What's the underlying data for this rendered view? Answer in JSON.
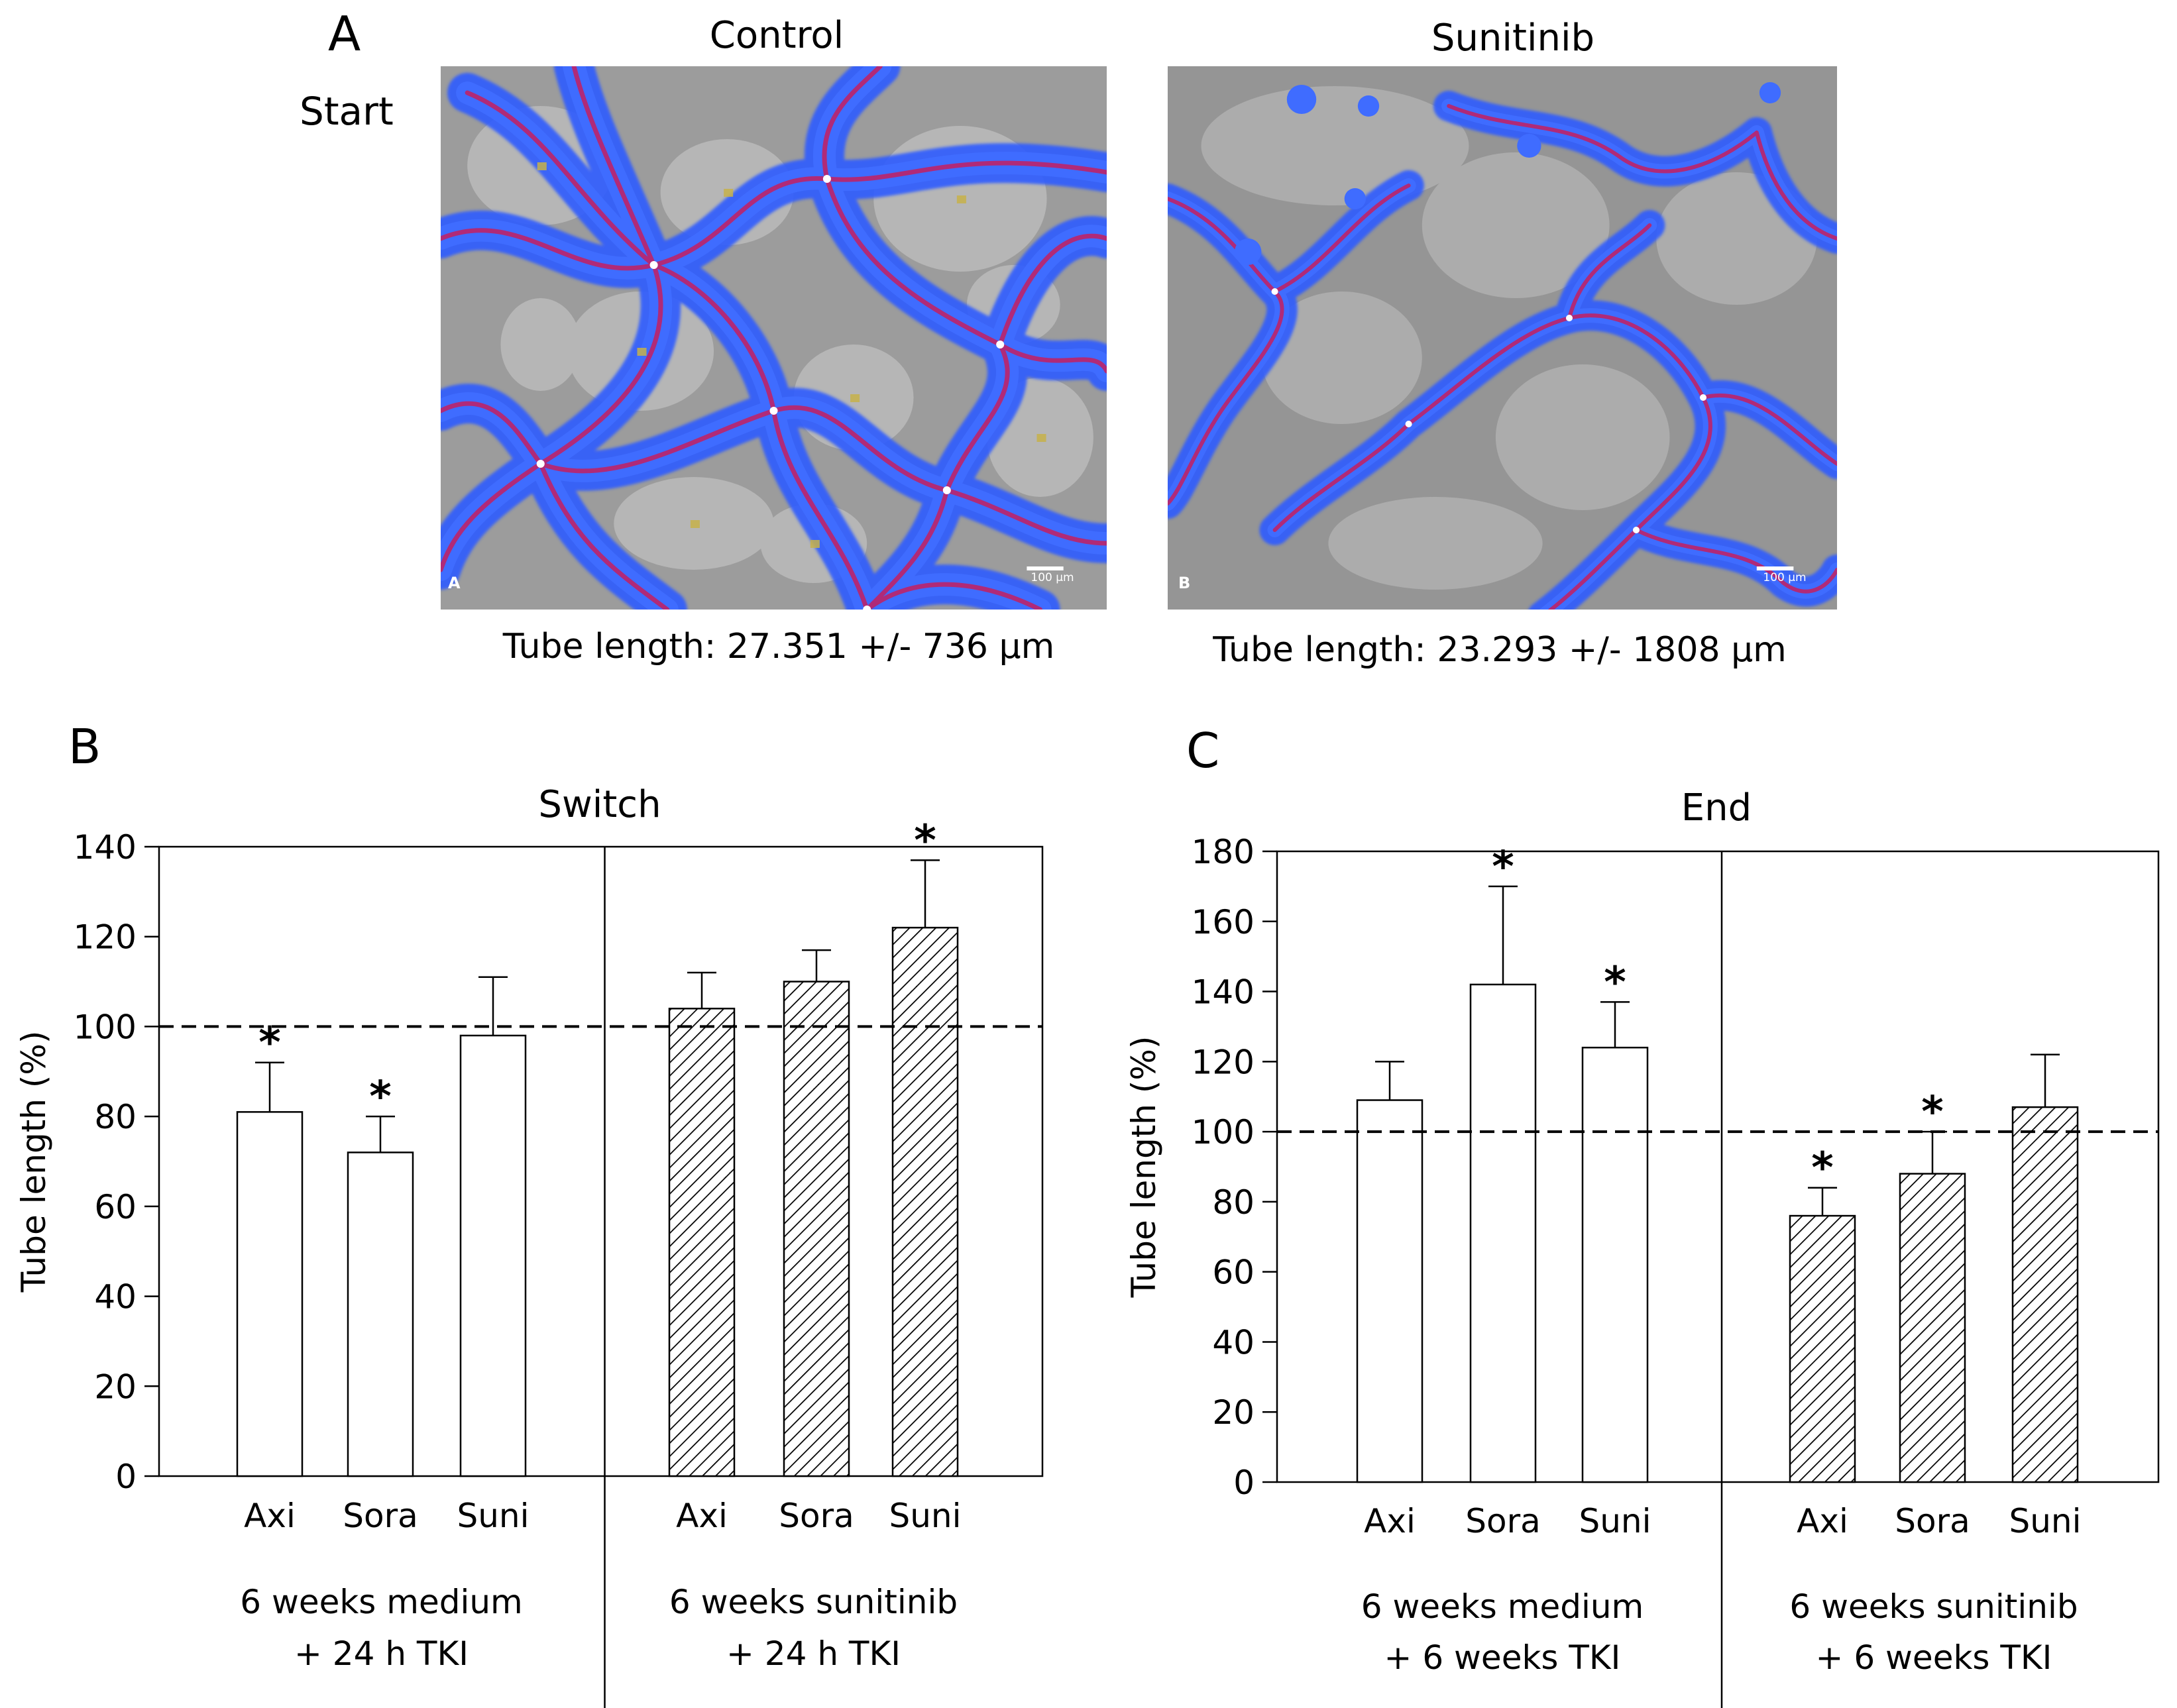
{
  "panel_a": {
    "letter": "A",
    "row_label": "Start",
    "images": [
      {
        "title": "Control",
        "corner_letter": "A",
        "scale_label": "100 µm",
        "caption": "Tube length: 27.351 +/- 736 µm"
      },
      {
        "title": "Sunitinib",
        "corner_letter": "B",
        "scale_label": "100 µm",
        "caption": "Tube length: 23.293 +/- 1808 µm"
      }
    ]
  },
  "chart_data": [
    {
      "type": "bar",
      "panel": "B",
      "title": "Switch",
      "ylabel": "Tube length (%)",
      "ylim": [
        0,
        140
      ],
      "yticks": [
        0,
        20,
        40,
        60,
        80,
        100,
        120,
        140
      ],
      "reference_line": 100,
      "categories": [
        "Axi",
        "Sora",
        "Suni"
      ],
      "groups": [
        {
          "label_lines": [
            "6 weeks medium",
            "+ 24 h TKI"
          ],
          "pattern": "open",
          "values": [
            81,
            72,
            98
          ],
          "errors": [
            11,
            8,
            13
          ],
          "significant": [
            true,
            true,
            false
          ]
        },
        {
          "label_lines": [
            "6 weeks sunitinib",
            "+ 24 h TKI"
          ],
          "pattern": "hatched",
          "values": [
            104,
            110,
            122
          ],
          "errors": [
            8,
            7,
            15
          ],
          "significant": [
            false,
            false,
            true
          ]
        }
      ],
      "significance_marker": "*"
    },
    {
      "type": "bar",
      "panel": "C",
      "title": "End",
      "ylabel": "Tube length (%)",
      "ylim": [
        0,
        180
      ],
      "yticks": [
        0,
        20,
        40,
        60,
        80,
        100,
        120,
        140,
        160,
        180
      ],
      "reference_line": 100,
      "categories": [
        "Axi",
        "Sora",
        "Suni"
      ],
      "groups": [
        {
          "label_lines": [
            "6 weeks medium",
            "+ 6 weeks TKI"
          ],
          "pattern": "open",
          "values": [
            109,
            142,
            124
          ],
          "errors": [
            11,
            28,
            13
          ],
          "significant": [
            false,
            true,
            true
          ]
        },
        {
          "label_lines": [
            "6 weeks sunitinib",
            "+ 6 weeks TKI"
          ],
          "pattern": "hatched",
          "values": [
            76,
            88,
            107
          ],
          "errors": [
            8,
            12,
            15
          ],
          "significant": [
            true,
            true,
            false
          ]
        }
      ],
      "significance_marker": "*"
    }
  ]
}
